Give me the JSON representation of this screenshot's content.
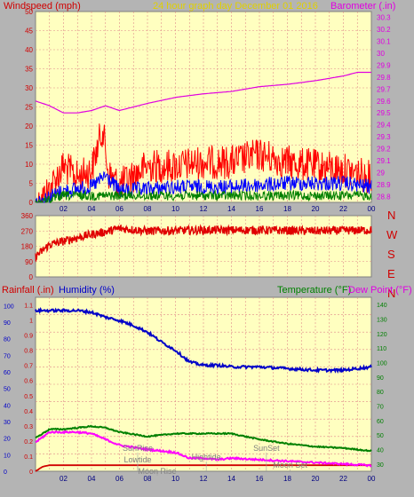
{
  "header": {
    "left_label": "Windspeed (mph)",
    "center_label": "24 hour graph day   December 01 2016",
    "right_label": "Barometer (.in)"
  },
  "compass": [
    "N",
    "W",
    "S",
    "E",
    "N"
  ],
  "bottom_header": {
    "rainfall_label": "Rainfall (.in)",
    "humidity_label": "Humidity (%)",
    "temperature_label": "Temperature (°F)",
    "dewpoint_label": "Dew Point (°F)"
  },
  "colors": {
    "background": "#b4b4b4",
    "plot_bg": "#ffffc0",
    "grid": "#e08a8a",
    "wind_gust": "#ff0000",
    "wind_avg": "#0000ff",
    "wind_low": "#008000",
    "barometer": "#e000e0",
    "direction": "#e00000",
    "humidity": "#0000c8",
    "temperature": "#008000",
    "dewpoint": "#ff00ff",
    "rainfall": "#d00000",
    "left_text": "#d00000",
    "center_text": "#e0d000",
    "right_text": "#e000e0",
    "sun_moon_text": "#808080"
  },
  "chart_data": [
    {
      "type": "line",
      "name": "wind-barometer",
      "x_ticks": [
        "02",
        "04",
        "06",
        "08",
        "10",
        "12",
        "14",
        "16",
        "18",
        "20",
        "22",
        "00"
      ],
      "x_range_hours": [
        0,
        24
      ],
      "y_left_ticks": [
        "0",
        "5",
        "10",
        "15",
        "20",
        "25",
        "30",
        "35",
        "40",
        "45",
        "50"
      ],
      "ylim_left": [
        0,
        50
      ],
      "y_right_ticks": [
        "28.8",
        "28.9",
        "29",
        "29.1",
        "29.2",
        "29.3",
        "29.4",
        "29.5",
        "29.6",
        "29.7",
        "29.8",
        "29.9",
        "30",
        "30.1",
        "30.2",
        "30.3"
      ],
      "ylim_right": [
        28.75,
        30.35
      ],
      "gust_profile": {
        "x": [
          0,
          1,
          2,
          3,
          4,
          4.8,
          5.2,
          6,
          8,
          10,
          12,
          14,
          16,
          18,
          20,
          22,
          24
        ],
        "y": [
          3,
          8,
          14,
          11,
          13,
          24,
          12,
          9,
          14,
          14,
          15,
          15,
          17,
          15,
          14,
          13,
          11
        ]
      },
      "average_profile": {
        "x": [
          0,
          2,
          4,
          5,
          6,
          10,
          14,
          18,
          22,
          24
        ],
        "y": [
          2,
          5,
          6,
          9,
          5,
          6,
          6,
          7,
          7,
          6
        ]
      },
      "low_profile": {
        "x": [
          0,
          2,
          4,
          6,
          10,
          14,
          18,
          22,
          24
        ],
        "y": [
          1,
          3,
          3,
          3,
          3,
          3,
          3,
          3,
          3
        ]
      },
      "barometer": {
        "x": [
          0,
          1,
          2,
          3,
          4,
          5,
          6,
          8,
          10,
          12,
          14,
          16,
          18,
          20,
          22,
          23,
          24
        ],
        "y": [
          29.6,
          29.56,
          29.5,
          29.5,
          29.52,
          29.56,
          29.52,
          29.58,
          29.63,
          29.66,
          29.68,
          29.72,
          29.74,
          29.77,
          29.81,
          29.84,
          29.84
        ]
      }
    },
    {
      "type": "line",
      "name": "wind-direction",
      "x_range_hours": [
        0,
        24
      ],
      "y_ticks": [
        "360",
        "270",
        "180",
        "90",
        "0"
      ],
      "ylim": [
        0,
        360
      ],
      "direction_profile": {
        "x": [
          0,
          1,
          2,
          3,
          4,
          5,
          6,
          8,
          12,
          16,
          20,
          24
        ],
        "y": [
          120,
          190,
          210,
          230,
          250,
          265,
          285,
          270,
          275,
          275,
          270,
          275
        ]
      }
    },
    {
      "type": "line",
      "name": "rain-humidity-temp",
      "x_ticks": [
        "02",
        "04",
        "06",
        "08",
        "10",
        "12",
        "14",
        "16",
        "18",
        "20",
        "22",
        "00"
      ],
      "x_range_hours": [
        0,
        24
      ],
      "y_rain_ticks": [
        "0",
        "0.1",
        "0.2",
        "0.3",
        "0.4",
        "0.5",
        "0.6",
        "0.7",
        "0.8",
        "0.9",
        "1",
        "1.1"
      ],
      "ylim_rain": [
        0,
        1.15
      ],
      "y_humidity_ticks": [
        "0",
        "10",
        "20",
        "30",
        "40",
        "50",
        "60",
        "70",
        "80",
        "90",
        "100"
      ],
      "ylim_humidity": [
        0,
        105
      ],
      "y_temp_ticks": [
        "30",
        "40",
        "50",
        "60",
        "70",
        "80",
        "90",
        "100",
        "110",
        "120",
        "130",
        "140"
      ],
      "ylim_temp": [
        25,
        145
      ],
      "humidity": {
        "x": [
          0,
          2,
          3,
          4,
          5,
          6,
          7,
          8,
          9,
          10,
          11,
          12,
          13,
          14,
          16,
          18,
          20,
          22,
          23,
          24
        ],
        "y": [
          97,
          97,
          97,
          96,
          93,
          91,
          88,
          84,
          78,
          73,
          66,
          64,
          64,
          63,
          63,
          62,
          61,
          61,
          62,
          63
        ]
      },
      "temperature": {
        "x": [
          0,
          1,
          2,
          3,
          4,
          5,
          6,
          8,
          10,
          12,
          14,
          16,
          18,
          20,
          22,
          24
        ],
        "y": [
          48,
          54,
          54,
          55,
          56,
          55,
          52,
          49,
          51,
          51,
          51,
          47,
          44,
          42,
          41,
          39
        ]
      },
      "dewpoint": {
        "x": [
          0,
          1,
          2,
          3,
          4,
          5,
          6,
          8,
          9,
          10,
          11,
          12,
          13,
          14,
          16,
          18,
          20,
          22,
          24
        ],
        "y": [
          45,
          52,
          52,
          52,
          51,
          47,
          43,
          40,
          39,
          38,
          34,
          34,
          33,
          34,
          33,
          32,
          31,
          30,
          29
        ]
      },
      "rainfall": {
        "x": [
          0,
          0.5,
          1,
          4,
          6,
          8,
          12,
          16,
          20,
          24
        ],
        "y": [
          0.0,
          0.03,
          0.04,
          0.04,
          0.04,
          0.04,
          0.04,
          0.04,
          0.04,
          0.04
        ]
      },
      "sun_moon_labels": [
        {
          "name": "sunrise",
          "text": "SunRise",
          "hour": 7.3
        },
        {
          "name": "lowtide",
          "text": "Lowtide",
          "hour": 7.3
        },
        {
          "name": "moonrise",
          "text": "Moon Rise",
          "hour": 8.7
        },
        {
          "name": "hightide",
          "text": "Hightide",
          "hour": 12.2
        },
        {
          "name": "sunset",
          "text": "SunSet",
          "hour": 16.5
        },
        {
          "name": "moonset",
          "text": "Moon Set",
          "hour": 18.2
        }
      ]
    }
  ]
}
